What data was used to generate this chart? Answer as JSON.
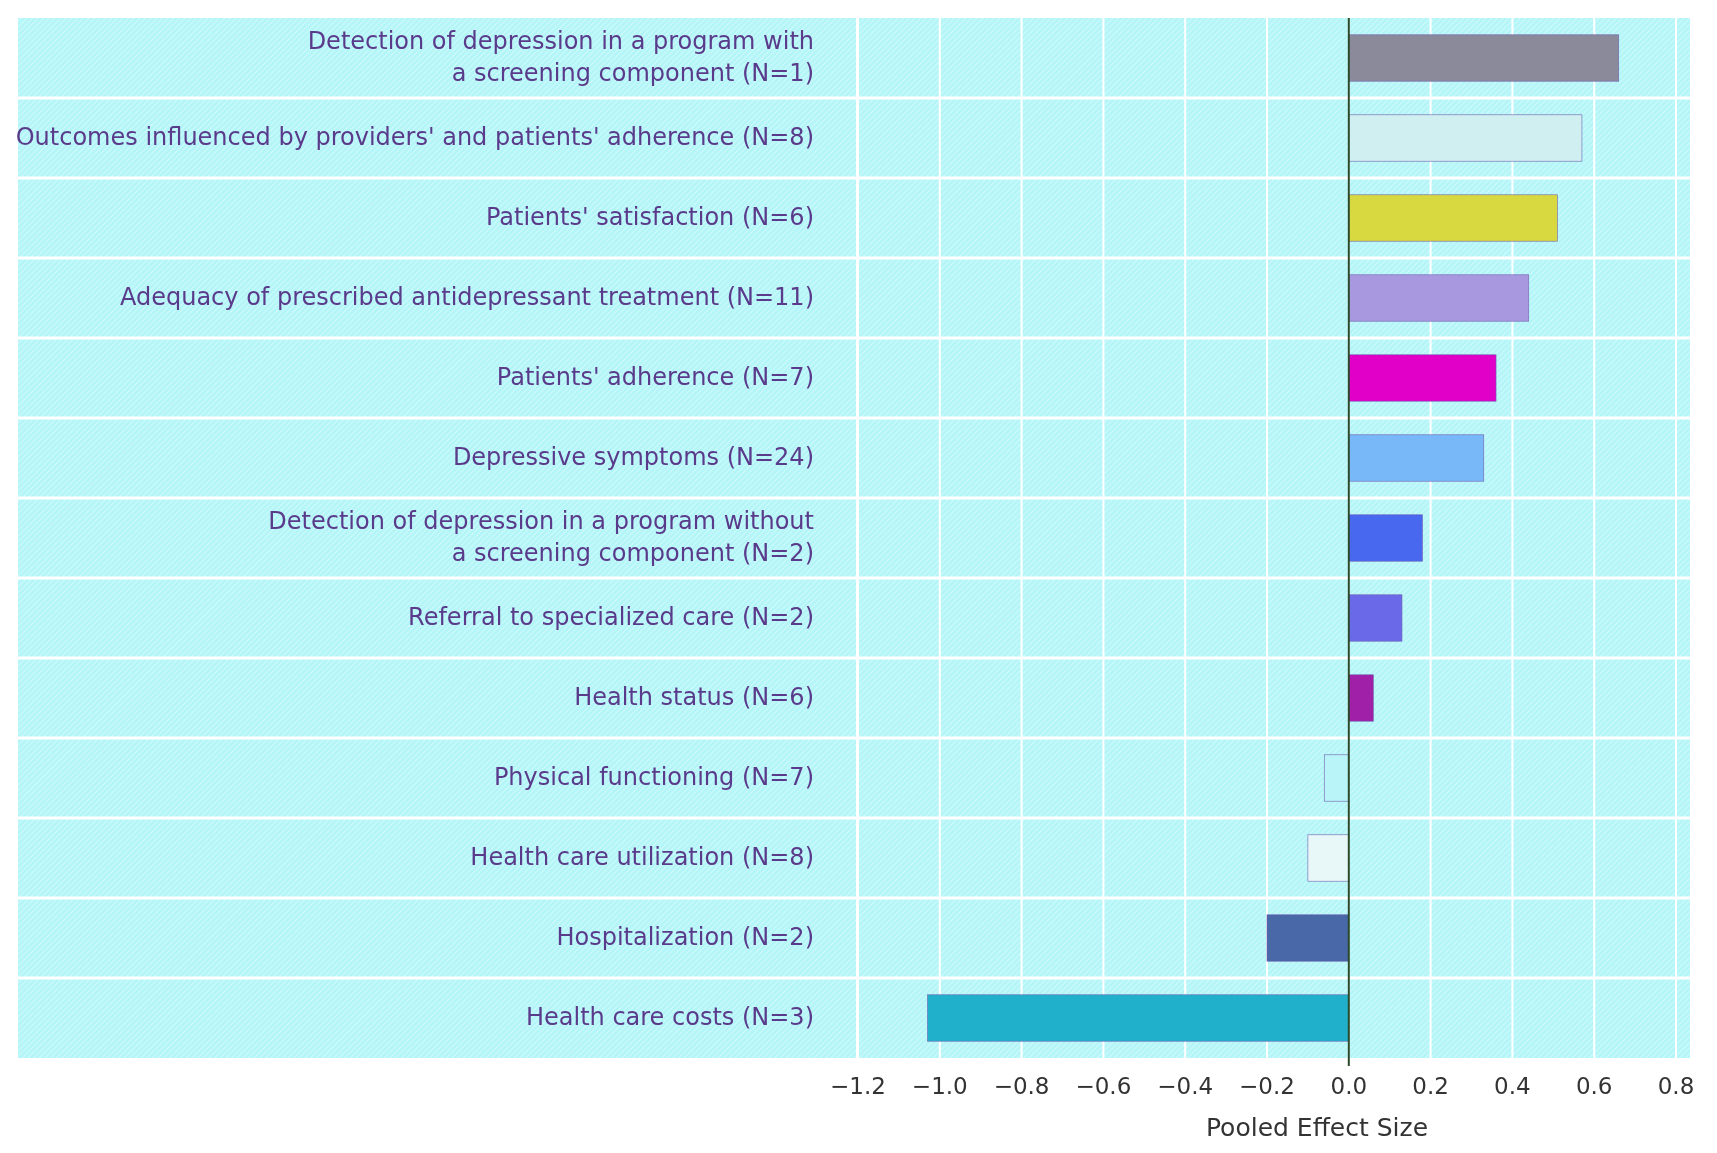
{
  "chart_data": {
    "type": "bar",
    "orientation": "horizontal",
    "xlabel": "Pooled Effect Size",
    "categories": [
      "Detection of depression in a program with\na screening component (N=1)",
      "Outcomes influenced by providers' and patients' adherence (N=8)",
      "Patients' satisfaction (N=6)",
      "Adequacy of prescribed antidepressant treatment (N=11)",
      "Patients' adherence (N=7)",
      "Depressive symptoms (N=24)",
      "Detection of depression in a program without\na screening component (N=2)",
      "Referral to specialized care (N=2)",
      "Health status (N=6)",
      "Physical functioning (N=7)",
      "Health care utilization (N=8)",
      "Hospitalization (N=2)",
      "Health care costs (N=3)"
    ],
    "values": [
      0.66,
      0.57,
      0.51,
      0.44,
      0.36,
      0.33,
      0.18,
      0.13,
      0.06,
      -0.06,
      -0.1,
      -0.2,
      -1.03
    ],
    "colors": [
      "#8a8a9a",
      "#cfeff0",
      "#d8d840",
      "#a898e0",
      "#e000c8",
      "#78b8f8",
      "#4868f0",
      "#6a6ae8",
      "#a020a8",
      "#b8f4f8",
      "#e8f8f8",
      "#4868a8",
      "#20b0cc"
    ],
    "xlim": [
      -1.2,
      0.8
    ],
    "xticks": [
      {
        "value": -1.2,
        "label": "−1.2"
      },
      {
        "value": -1.0,
        "label": "−1.0"
      },
      {
        "value": -0.8,
        "label": "−0.8"
      },
      {
        "value": -0.6,
        "label": "−0.6"
      },
      {
        "value": -0.4,
        "label": "−0.4"
      },
      {
        "value": -0.2,
        "label": "−0.2"
      },
      {
        "value": 0,
        "label": "0.0"
      },
      {
        "value": 0.2,
        "label": "0.2"
      },
      {
        "value": 0.4,
        "label": "0.4"
      },
      {
        "value": 0.6,
        "label": "0.6"
      },
      {
        "value": 0.8,
        "label": "0.8"
      }
    ],
    "grid": "x"
  }
}
